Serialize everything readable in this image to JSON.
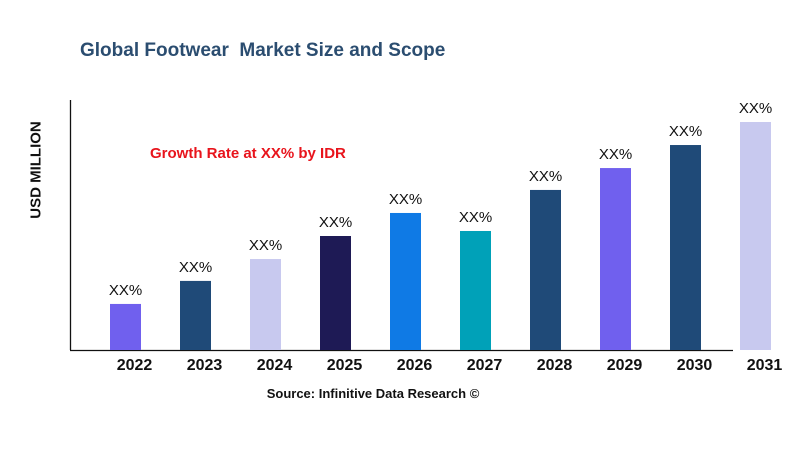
{
  "chart_data": {
    "type": "bar",
    "title": "Global Footwear  Market Size and Scope",
    "ylabel": "USD MILLION",
    "xlabel": "",
    "annotation": "Growth Rate at XX% by IDR",
    "source": "Source: Infinitive Data Research ©",
    "categories": [
      "2022",
      "2023",
      "2024",
      "2025",
      "2026",
      "2027",
      "2028",
      "2029",
      "2030",
      "2031"
    ],
    "values": [
      20.2,
      30.3,
      39.9,
      50.0,
      60.1,
      52.2,
      70.2,
      79.8,
      89.9,
      100
    ],
    "data_labels": [
      "XX%",
      "XX%",
      "XX%",
      "XX%",
      "XX%",
      "XX%",
      "XX%",
      "XX%",
      "XX%",
      "XX%"
    ],
    "colors": [
      "#7060ee",
      "#1f4a78",
      "#c8c9ef",
      "#1e1a55",
      "#0f7ae5",
      "#00a1b8",
      "#1f4a78",
      "#7060ee",
      "#1f4a78",
      "#c8c9ef"
    ],
    "ylim": [
      0,
      110
    ],
    "grid": false,
    "legend": "none"
  }
}
